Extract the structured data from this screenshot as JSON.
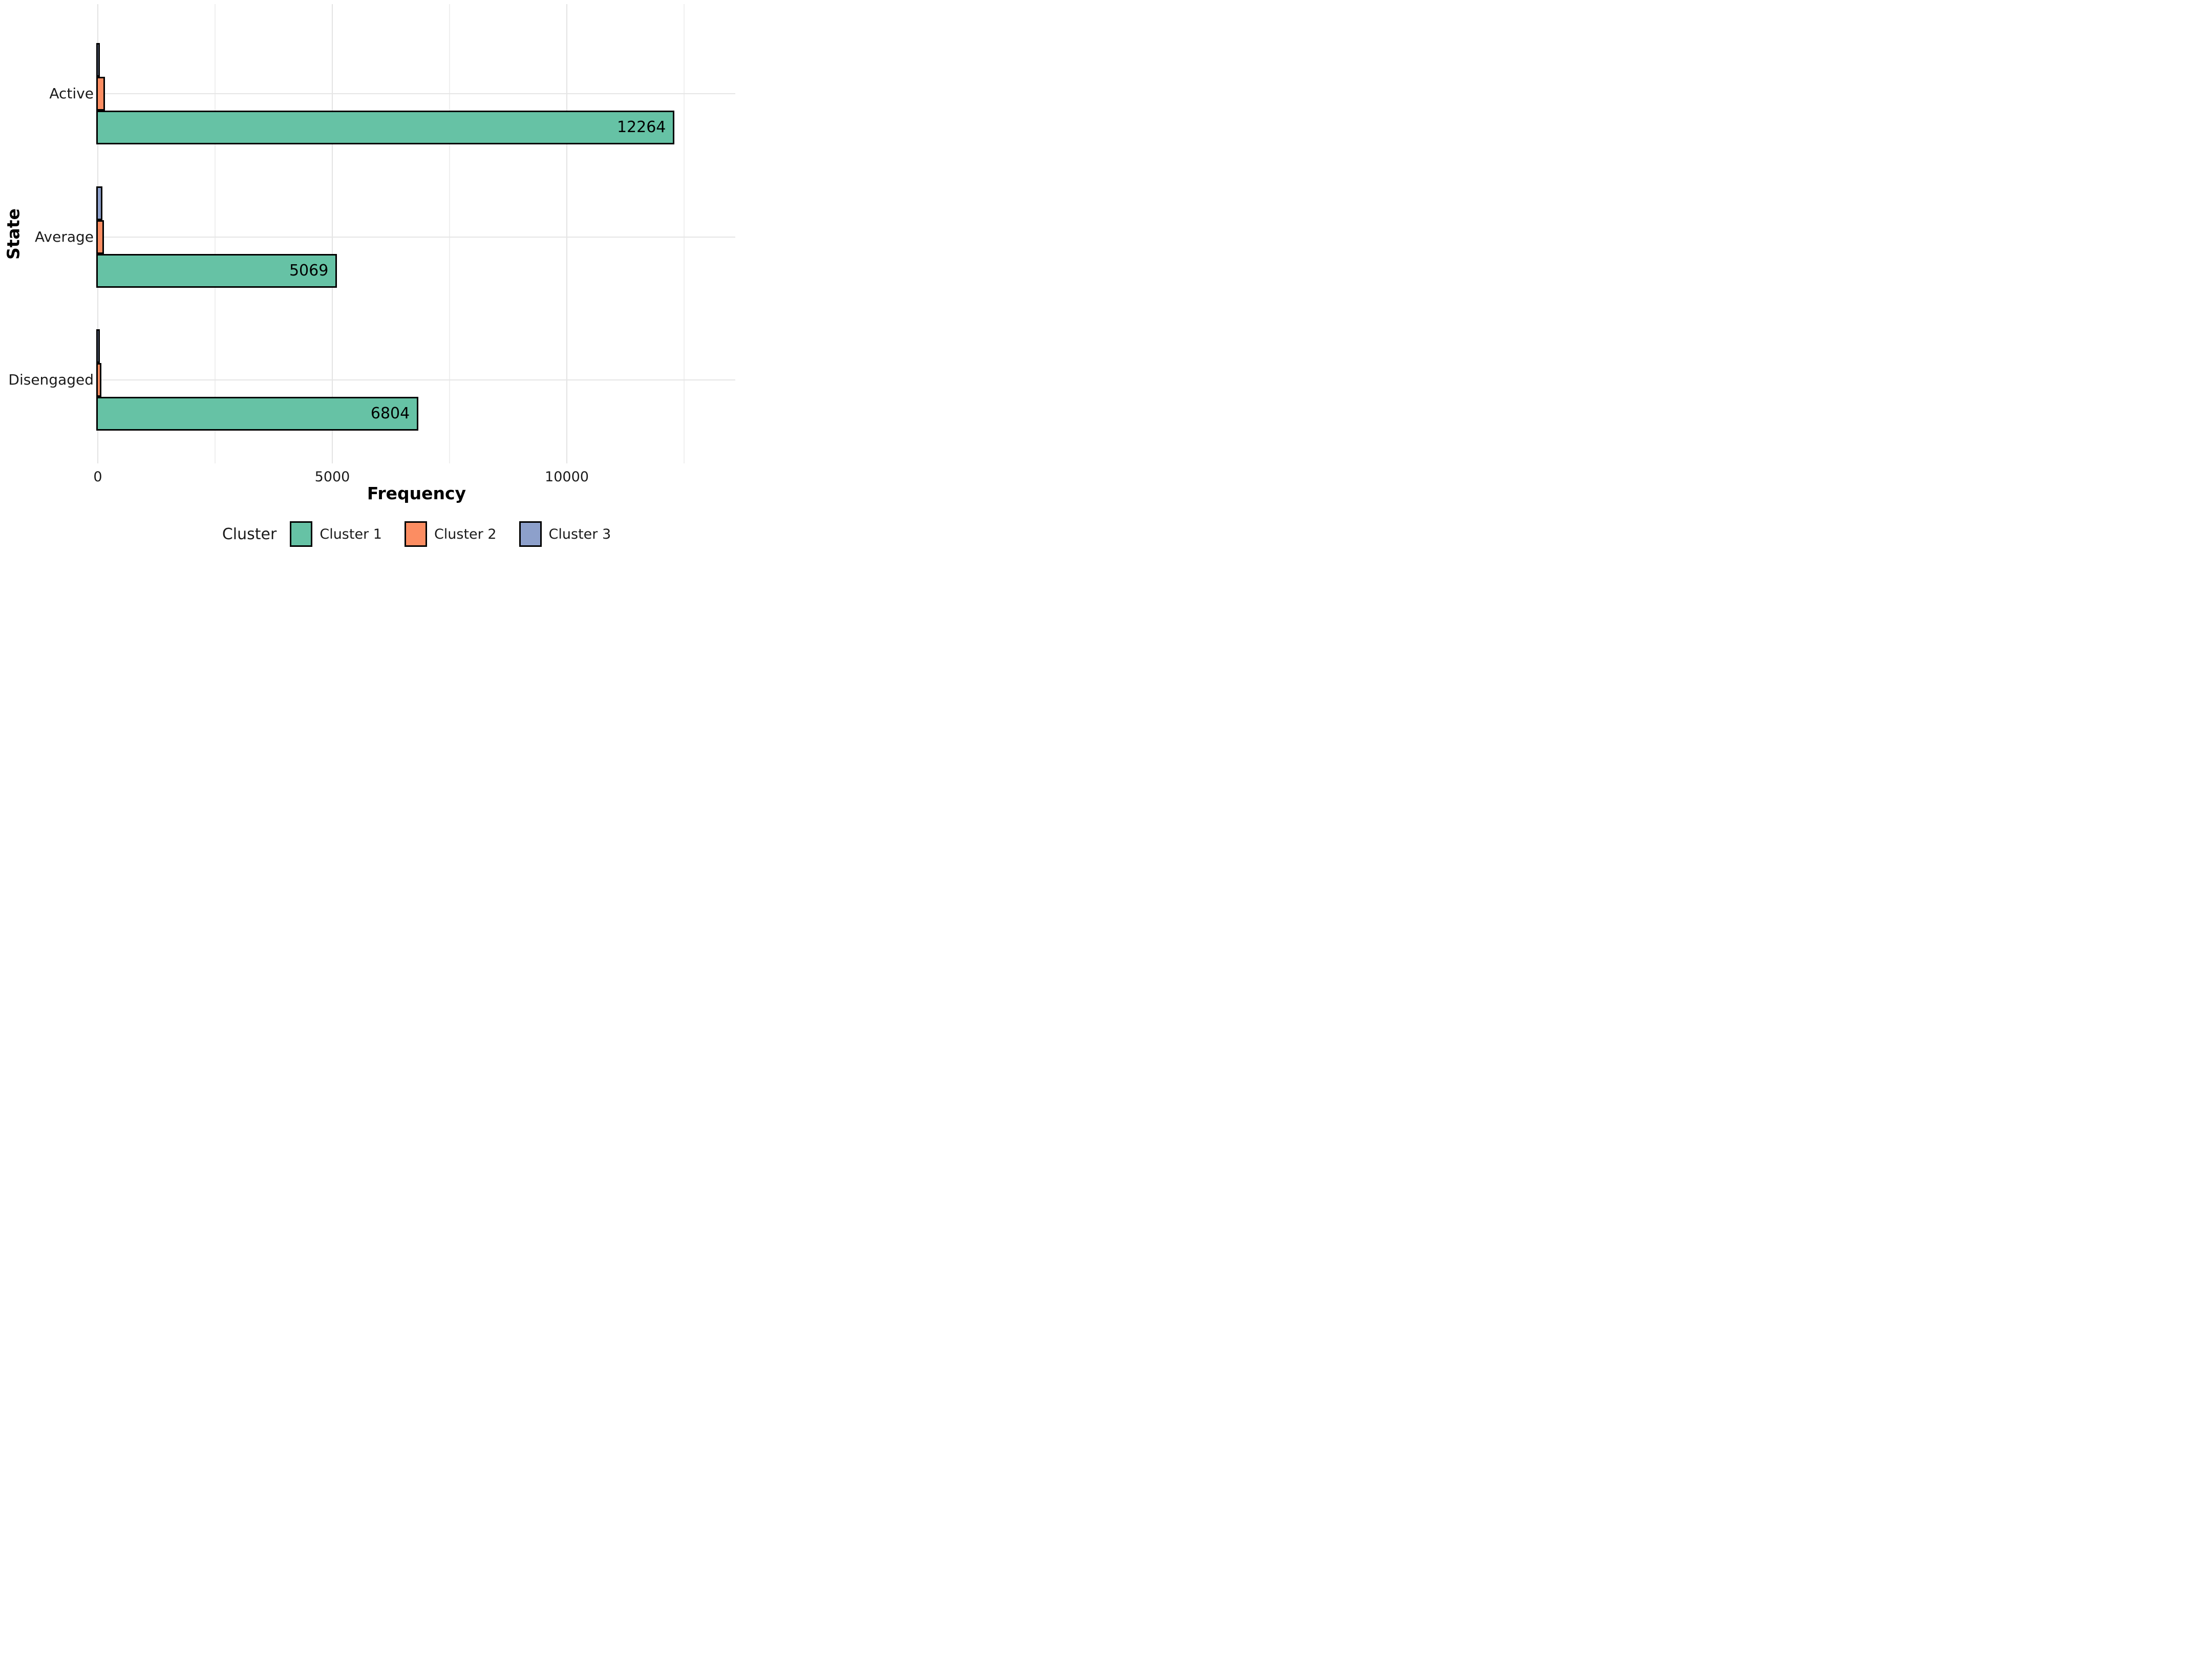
{
  "chart_data": {
    "type": "bar",
    "orientation": "horizontal",
    "title": "",
    "xlabel": "Frequency",
    "ylabel": "State",
    "categories": [
      "Active",
      "Average",
      "Disengaged"
    ],
    "series": [
      {
        "name": "Cluster 1",
        "color": "#66C2A5",
        "values": [
          12264,
          5069,
          6804
        ],
        "value_labels": [
          "12264",
          "5069",
          "6804"
        ]
      },
      {
        "name": "Cluster 2",
        "color": "#FC8D62",
        "values": [
          125,
          100,
          45
        ],
        "value_labels": [
          "",
          "",
          ""
        ]
      },
      {
        "name": "Cluster 3",
        "color": "#8DA0CB",
        "values": [
          15,
          65,
          15
        ],
        "value_labels": [
          "",
          "",
          ""
        ]
      }
    ],
    "bar_order_top_to_bottom": [
      "Cluster 3",
      "Cluster 2",
      "Cluster 1"
    ],
    "bar_outline_color": "#000000",
    "x_axis": {
      "tick_labels": [
        "0",
        "5000",
        "10000"
      ],
      "tick_values": [
        0,
        5000,
        10000
      ],
      "minor_gridlines": [
        2500,
        7500,
        12500
      ],
      "range": [
        0,
        13600
      ]
    },
    "grid": {
      "vertical_gridlines": true,
      "horizontal_gridlines_at_categories": true,
      "gridline_color": "#e5e5e5"
    },
    "legend": {
      "title": "Cluster",
      "position": "bottom",
      "entries": [
        "Cluster 1",
        "Cluster 2",
        "Cluster 3"
      ]
    },
    "background_color": "#ffffff"
  }
}
